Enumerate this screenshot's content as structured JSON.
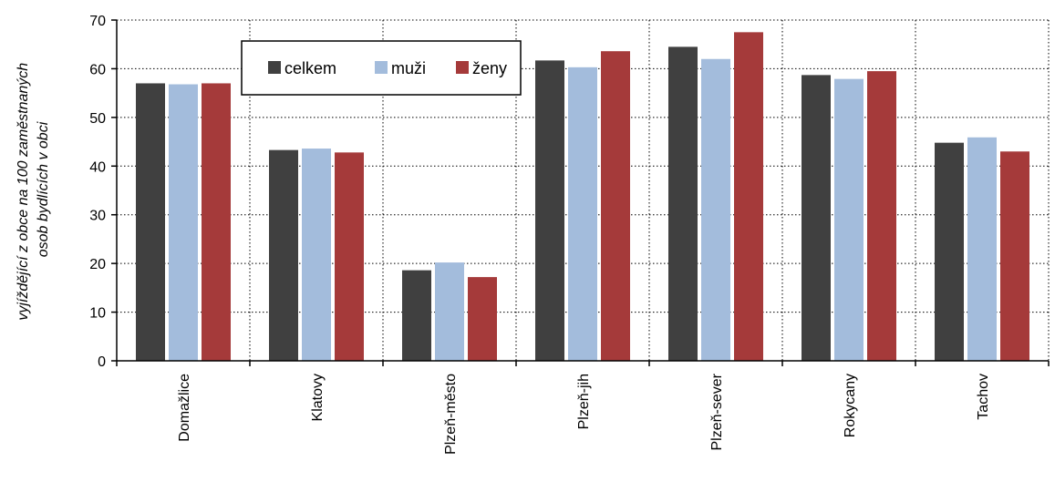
{
  "chart_data": {
    "type": "bar",
    "title": "",
    "xlabel": "",
    "ylabel_lines": [
      "vyjíždějící z obce na 100 zaměstnaných",
      "osob bydlících v obci"
    ],
    "ylim": [
      0,
      70
    ],
    "yticks": [
      0,
      10,
      20,
      30,
      40,
      50,
      60,
      70
    ],
    "grid": "dotted, both axes",
    "legend_position": "top-left inside plot",
    "categories": [
      "Domažlice",
      "Klatovy",
      "Plzeň-město",
      "Plzeň-jih",
      "Plzeň-sever",
      "Rokycany",
      "Tachov"
    ],
    "series": [
      {
        "name": "celkem",
        "color": "#404040",
        "values": [
          57.0,
          43.3,
          18.6,
          61.7,
          64.5,
          58.7,
          44.8
        ]
      },
      {
        "name": "muži",
        "color": "#a3bcdc",
        "values": [
          56.8,
          43.6,
          20.2,
          60.3,
          62.0,
          57.9,
          45.9
        ]
      },
      {
        "name": "ženy",
        "color": "#a53a3a",
        "values": [
          57.0,
          42.8,
          17.2,
          63.6,
          67.5,
          59.5,
          43.0
        ]
      }
    ]
  }
}
